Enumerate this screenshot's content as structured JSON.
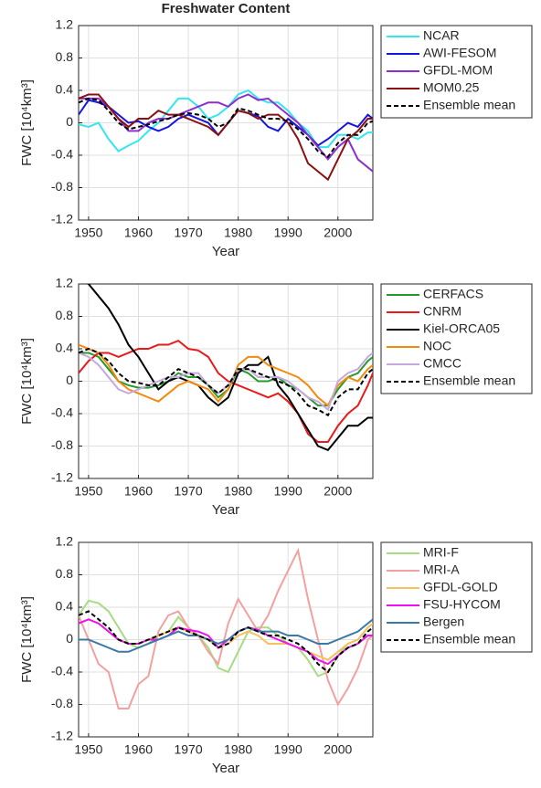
{
  "chart_data": [
    {
      "type": "line",
      "title": "Freshwater Content",
      "xlabel": "Year",
      "ylabel": "FWC [10⁴km³]",
      "x": [
        1948,
        1950,
        1952,
        1954,
        1956,
        1958,
        1960,
        1962,
        1964,
        1966,
        1968,
        1970,
        1972,
        1974,
        1976,
        1978,
        1980,
        1982,
        1984,
        1986,
        1988,
        1990,
        1992,
        1994,
        1996,
        1998,
        2000,
        2002,
        2004,
        2006,
        2007
      ],
      "xlim": [
        1948,
        2007
      ],
      "xticks": [
        1950,
        1960,
        1970,
        1980,
        1990,
        2000
      ],
      "ylim": [
        -1.2,
        1.2
      ],
      "yticks": [
        -1.2,
        -0.8,
        -0.4,
        0,
        0.4,
        0.8,
        1.2
      ],
      "grid": true,
      "series": [
        {
          "name": "NCAR",
          "color": "#33e6f0",
          "values": [
            -0.02,
            -0.05,
            0.0,
            -0.2,
            -0.35,
            -0.28,
            -0.22,
            -0.1,
            0.0,
            0.15,
            0.3,
            0.3,
            0.2,
            0.05,
            0.1,
            0.2,
            0.35,
            0.4,
            0.3,
            0.25,
            0.25,
            0.15,
            0.0,
            -0.1,
            -0.3,
            -0.3,
            -0.15,
            -0.15,
            -0.2,
            -0.12,
            -0.12
          ]
        },
        {
          "name": "AWI-FESOM",
          "color": "#1515e0",
          "values": [
            0.1,
            0.28,
            0.25,
            0.2,
            0.1,
            0.0,
            0.02,
            -0.05,
            -0.1,
            -0.05,
            0.05,
            0.1,
            0.05,
            0.0,
            -0.15,
            0.0,
            0.15,
            0.12,
            0.08,
            -0.05,
            -0.1,
            0.05,
            -0.05,
            -0.15,
            -0.28,
            -0.2,
            -0.1,
            0.0,
            -0.05,
            0.1,
            0.05
          ]
        },
        {
          "name": "GFDL-MOM",
          "color": "#8e2ed0",
          "values": [
            0.3,
            0.3,
            0.3,
            0.2,
            0.05,
            -0.1,
            -0.1,
            0.0,
            0.05,
            0.05,
            0.1,
            0.15,
            0.2,
            0.25,
            0.25,
            0.2,
            0.3,
            0.35,
            0.28,
            0.3,
            0.2,
            0.1,
            0.0,
            -0.15,
            -0.3,
            -0.45,
            -0.3,
            -0.2,
            -0.45,
            -0.55,
            -0.6
          ]
        },
        {
          "name": "MOM0.25",
          "color": "#8b1010",
          "values": [
            0.3,
            0.35,
            0.35,
            0.2,
            0.05,
            -0.05,
            0.05,
            0.05,
            0.15,
            0.1,
            0.1,
            0.05,
            0.0,
            -0.05,
            -0.15,
            0.0,
            0.15,
            0.12,
            0.05,
            0.1,
            0.1,
            0.0,
            -0.2,
            -0.5,
            -0.6,
            -0.7,
            -0.45,
            -0.2,
            -0.1,
            0.05,
            0.05
          ]
        },
        {
          "name": "Ensemble mean",
          "color": "#000000",
          "style": "dashed",
          "values": [
            0.25,
            0.3,
            0.28,
            0.15,
            0.0,
            -0.08,
            -0.05,
            -0.02,
            0.02,
            0.05,
            0.1,
            0.12,
            0.1,
            0.05,
            -0.05,
            0.0,
            0.18,
            0.15,
            0.1,
            0.05,
            0.05,
            0.02,
            -0.08,
            -0.2,
            -0.35,
            -0.42,
            -0.25,
            -0.15,
            -0.15,
            0.0,
            0.02
          ]
        }
      ]
    },
    {
      "type": "line",
      "xlabel": "Year",
      "ylabel": "FWC [10⁴km³]",
      "x": [
        1948,
        1950,
        1952,
        1954,
        1956,
        1958,
        1960,
        1962,
        1964,
        1966,
        1968,
        1970,
        1972,
        1974,
        1976,
        1978,
        1980,
        1982,
        1984,
        1986,
        1988,
        1990,
        1992,
        1994,
        1996,
        1998,
        2000,
        2002,
        2004,
        2006,
        2007
      ],
      "xlim": [
        1948,
        2007
      ],
      "xticks": [
        1950,
        1960,
        1970,
        1980,
        1990,
        2000
      ],
      "ylim": [
        -1.2,
        1.2
      ],
      "yticks": [
        -1.2,
        -0.8,
        -0.4,
        0,
        0.4,
        0.8,
        1.2
      ],
      "grid": true,
      "series": [
        {
          "name": "CERFACS",
          "color": "#259a2c",
          "values": [
            0.35,
            0.35,
            0.3,
            0.15,
            0.0,
            -0.05,
            -0.08,
            -0.08,
            -0.05,
            0.0,
            0.1,
            0.05,
            0.05,
            -0.05,
            -0.2,
            -0.1,
            0.15,
            0.1,
            0.0,
            0.0,
            0.05,
            -0.05,
            -0.1,
            -0.2,
            -0.3,
            -0.3,
            -0.1,
            0.05,
            0.1,
            0.25,
            0.3
          ]
        },
        {
          "name": "CNRM",
          "color": "#e81a1a",
          "values": [
            0.1,
            0.25,
            0.35,
            0.35,
            0.3,
            0.35,
            0.4,
            0.4,
            0.45,
            0.45,
            0.5,
            0.4,
            0.38,
            0.3,
            0.1,
            0.0,
            -0.05,
            -0.1,
            -0.15,
            -0.2,
            -0.15,
            -0.25,
            -0.4,
            -0.65,
            -0.75,
            -0.75,
            -0.55,
            -0.4,
            -0.3,
            -0.05,
            0.1
          ]
        },
        {
          "name": "Kiel-ORCA05",
          "color": "#000000",
          "values": [
            1.25,
            1.2,
            1.05,
            0.9,
            0.7,
            0.45,
            0.3,
            0.1,
            -0.1,
            0.0,
            0.05,
            0.0,
            -0.05,
            -0.2,
            -0.3,
            -0.2,
            0.1,
            0.2,
            0.2,
            0.3,
            -0.05,
            -0.2,
            -0.4,
            -0.6,
            -0.8,
            -0.85,
            -0.7,
            -0.55,
            -0.55,
            -0.45,
            -0.45
          ]
        },
        {
          "name": "NOC",
          "color": "#f58a0a",
          "values": [
            0.45,
            0.4,
            0.35,
            0.2,
            0.0,
            -0.1,
            -0.15,
            -0.2,
            -0.25,
            -0.15,
            -0.05,
            0.0,
            -0.05,
            -0.1,
            -0.25,
            -0.1,
            0.2,
            0.3,
            0.3,
            0.2,
            0.15,
            0.1,
            0.05,
            -0.05,
            -0.2,
            -0.3,
            -0.05,
            0.05,
            0.0,
            0.15,
            0.2
          ]
        },
        {
          "name": "CMCC",
          "color": "#c8a8e0",
          "values": [
            0.35,
            0.3,
            0.2,
            0.05,
            -0.1,
            -0.15,
            -0.1,
            -0.05,
            0.0,
            0.05,
            0.05,
            0.1,
            0.1,
            -0.05,
            -0.15,
            -0.05,
            0.15,
            0.15,
            0.05,
            0.05,
            0.05,
            0.0,
            -0.1,
            -0.2,
            -0.25,
            -0.35,
            0.0,
            0.1,
            0.15,
            0.3,
            0.35
          ]
        },
        {
          "name": "Ensemble mean",
          "color": "#000000",
          "style": "dashed",
          "values": [
            0.35,
            0.4,
            0.35,
            0.25,
            0.1,
            0.0,
            -0.02,
            -0.05,
            -0.05,
            0.05,
            0.15,
            0.1,
            0.05,
            -0.05,
            -0.15,
            -0.05,
            0.15,
            0.15,
            0.1,
            0.05,
            0.0,
            -0.05,
            -0.15,
            -0.3,
            -0.35,
            -0.42,
            -0.2,
            -0.1,
            -0.1,
            0.1,
            0.15
          ]
        }
      ]
    },
    {
      "type": "line",
      "xlabel": "Year",
      "ylabel": "FWC [10⁴km³]",
      "x": [
        1948,
        1950,
        1952,
        1954,
        1956,
        1958,
        1960,
        1962,
        1964,
        1966,
        1968,
        1970,
        1972,
        1974,
        1976,
        1978,
        1980,
        1982,
        1984,
        1986,
        1988,
        1990,
        1992,
        1994,
        1996,
        1998,
        2000,
        2002,
        2004,
        2006,
        2007
      ],
      "xlim": [
        1948,
        2007
      ],
      "xticks": [
        1950,
        1960,
        1970,
        1980,
        1990,
        2000
      ],
      "ylim": [
        -1.2,
        1.2
      ],
      "yticks": [
        -1.2,
        -0.8,
        -0.4,
        0,
        0.4,
        0.8,
        1.2
      ],
      "grid": true,
      "series": [
        {
          "name": "MRI-F",
          "color": "#a8dc84",
          "values": [
            0.3,
            0.48,
            0.45,
            0.35,
            0.15,
            -0.05,
            -0.1,
            -0.05,
            0.05,
            0.1,
            0.28,
            0.15,
            0.05,
            -0.1,
            -0.35,
            -0.4,
            -0.15,
            0.1,
            0.15,
            0.15,
            0.05,
            -0.05,
            -0.1,
            -0.25,
            -0.45,
            -0.4,
            -0.2,
            -0.05,
            0.0,
            0.15,
            0.2
          ]
        },
        {
          "name": "MRI-A",
          "color": "#f4a0a0",
          "values": [
            0.3,
            0.0,
            -0.3,
            -0.4,
            -0.85,
            -0.85,
            -0.55,
            -0.45,
            0.1,
            0.3,
            0.35,
            0.15,
            0.05,
            -0.15,
            -0.3,
            0.2,
            0.5,
            0.3,
            0.1,
            0.3,
            0.6,
            0.85,
            1.1,
            0.5,
            0.0,
            -0.5,
            -0.8,
            -0.6,
            -0.35,
            0.0,
            0.05
          ]
        },
        {
          "name": "GFDL-GOLD",
          "color": "#f7c060",
          "values": [
            0.2,
            0.25,
            0.2,
            0.1,
            0.0,
            -0.05,
            -0.05,
            0.0,
            0.05,
            0.1,
            0.15,
            0.1,
            0.05,
            0.0,
            -0.1,
            -0.05,
            0.05,
            0.1,
            0.05,
            -0.05,
            -0.05,
            -0.05,
            -0.1,
            -0.15,
            -0.2,
            -0.25,
            -0.15,
            -0.05,
            0.0,
            0.15,
            0.2
          ]
        },
        {
          "name": "FSU-HYCOM",
          "color": "#f010f0",
          "values": [
            0.2,
            0.25,
            0.2,
            0.1,
            0.0,
            -0.05,
            -0.05,
            0.0,
            0.0,
            0.05,
            0.15,
            0.12,
            0.1,
            0.05,
            -0.1,
            0.0,
            0.1,
            0.15,
            0.12,
            0.05,
            0.0,
            -0.05,
            -0.1,
            -0.15,
            -0.25,
            -0.3,
            -0.2,
            -0.1,
            -0.05,
            0.05,
            0.05
          ]
        },
        {
          "name": "Bergen",
          "color": "#3a78a8",
          "values": [
            0.0,
            0.0,
            -0.05,
            -0.1,
            -0.15,
            -0.15,
            -0.1,
            -0.05,
            0.0,
            0.05,
            0.1,
            0.05,
            0.05,
            0.0,
            -0.05,
            0.0,
            0.1,
            0.15,
            0.1,
            0.1,
            0.1,
            0.05,
            0.05,
            0.0,
            -0.05,
            -0.05,
            0.0,
            0.05,
            0.1,
            0.2,
            0.25
          ]
        },
        {
          "name": "Ensemble mean",
          "color": "#000000",
          "style": "dashed",
          "values": [
            0.3,
            0.35,
            0.25,
            0.15,
            0.0,
            -0.05,
            -0.05,
            0.0,
            0.05,
            0.1,
            0.15,
            0.1,
            0.05,
            0.0,
            -0.1,
            -0.05,
            0.1,
            0.15,
            0.1,
            0.05,
            0.05,
            0.0,
            -0.05,
            -0.15,
            -0.3,
            -0.4,
            -0.2,
            -0.1,
            -0.05,
            0.1,
            0.15
          ]
        }
      ]
    }
  ]
}
